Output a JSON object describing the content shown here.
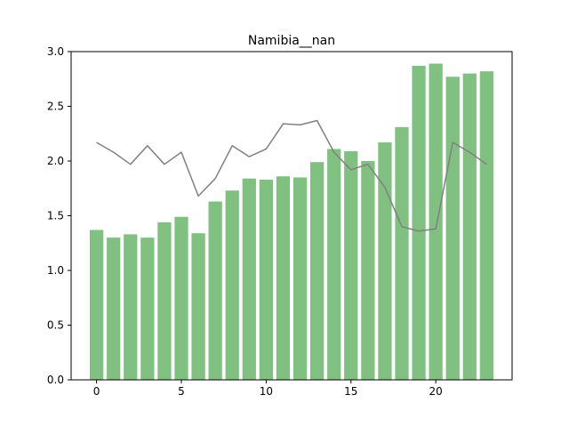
{
  "chart_data": {
    "type": "bar",
    "title": "Namibia__nan",
    "xlabel": "",
    "ylabel": "",
    "xlim": [
      -1.5,
      24.5
    ],
    "ylim": [
      0,
      3.0
    ],
    "x_ticks": [
      0,
      5,
      10,
      15,
      20
    ],
    "y_ticks": [
      0.0,
      0.5,
      1.0,
      1.5,
      2.0,
      2.5,
      3.0
    ],
    "grid": false,
    "legend": "none",
    "categories": [
      0,
      1,
      2,
      3,
      4,
      5,
      6,
      7,
      8,
      9,
      10,
      11,
      12,
      13,
      14,
      15,
      16,
      17,
      18,
      19,
      20,
      21,
      22,
      23
    ],
    "series": [
      {
        "type": "bar",
        "color": "#80c080",
        "values": [
          1.37,
          1.3,
          1.33,
          1.3,
          1.44,
          1.49,
          1.34,
          1.63,
          1.73,
          1.84,
          1.83,
          1.86,
          1.85,
          1.99,
          2.11,
          2.09,
          2.0,
          2.17,
          2.31,
          2.87,
          2.89,
          2.77,
          2.8,
          2.82
        ]
      },
      {
        "type": "line",
        "color": "#808080",
        "values": [
          2.17,
          2.08,
          1.97,
          2.14,
          1.97,
          2.08,
          1.68,
          1.84,
          2.14,
          2.04,
          2.11,
          2.34,
          2.33,
          2.37,
          2.08,
          1.92,
          1.97,
          1.76,
          1.4,
          1.36,
          1.38,
          2.17,
          2.08,
          1.97
        ]
      }
    ]
  }
}
